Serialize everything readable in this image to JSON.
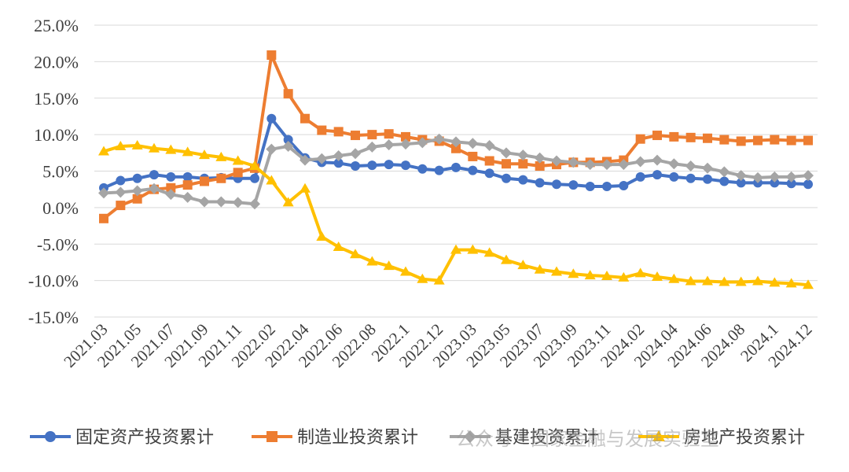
{
  "chart_data": {
    "type": "line",
    "title": "",
    "xlabel": "",
    "ylabel": "",
    "ylim": [
      -15,
      25
    ],
    "yticks": [
      "25.0%",
      "20.0%",
      "15.0%",
      "10.0%",
      "5.0%",
      "0.0%",
      "-5.0%",
      "-10.0%",
      "-15.0%"
    ],
    "ytick_values": [
      25,
      20,
      15,
      10,
      5,
      0,
      -5,
      -10,
      -15
    ],
    "x": [
      "2021.03",
      "2021.04",
      "2021.05",
      "2021.06",
      "2021.07",
      "2021.08",
      "2021.09",
      "2021.10",
      "2021.11",
      "2021.12",
      "2022.02",
      "2022.03",
      "2022.04",
      "2022.05",
      "2022.06",
      "2022.07",
      "2022.08",
      "2022.09",
      "2022.1",
      "2022.11",
      "2022.12",
      "2023.02",
      "2023.03",
      "2023.04",
      "2023.05",
      "2023.06",
      "2023.07",
      "2023.08",
      "2023.09",
      "2023.10",
      "2023.11",
      "2023.12",
      "2024.02",
      "2024.03",
      "2024.04",
      "2024.05",
      "2024.06",
      "2024.07",
      "2024.08",
      "2024.09",
      "2024.1",
      "2024.11",
      "2024.12"
    ],
    "xtick_labels": [
      "2021.03",
      "2021.05",
      "2021.07",
      "2021.09",
      "2021.11",
      "2022.02",
      "2022.04",
      "2022.06",
      "2022.08",
      "2022.1",
      "2022.12",
      "2023.03",
      "2023.05",
      "2023.07",
      "2023.09",
      "2023.11",
      "2024.02",
      "2024.04",
      "2024.06",
      "2024.08",
      "2024.1",
      "2024.12"
    ],
    "grid": true,
    "legend_position": "bottom",
    "series": [
      {
        "name": "固定资产投资累计",
        "color": "#4472C4",
        "marker": "circle",
        "values": [
          2.7,
          3.7,
          4.0,
          4.5,
          4.2,
          4.2,
          4.0,
          4.1,
          4.0,
          4.0,
          12.2,
          9.3,
          6.8,
          6.2,
          6.1,
          5.7,
          5.8,
          5.9,
          5.8,
          5.3,
          5.1,
          5.5,
          5.1,
          4.7,
          4.0,
          3.8,
          3.4,
          3.2,
          3.1,
          2.9,
          2.9,
          3.0,
          4.2,
          4.5,
          4.2,
          4.0,
          3.9,
          3.6,
          3.4,
          3.4,
          3.4,
          3.3,
          3.2
        ]
      },
      {
        "name": "制造业投资累计",
        "color": "#ED7D31",
        "marker": "square",
        "values": [
          -1.5,
          0.3,
          1.2,
          2.5,
          2.7,
          3.1,
          3.6,
          4.0,
          4.8,
          5.4,
          20.9,
          15.6,
          12.2,
          10.6,
          10.4,
          9.9,
          10.0,
          10.1,
          9.7,
          9.3,
          9.1,
          8.1,
          7.0,
          6.4,
          6.0,
          6.0,
          5.7,
          5.9,
          6.2,
          6.2,
          6.3,
          6.5,
          9.4,
          9.9,
          9.7,
          9.6,
          9.5,
          9.3,
          9.1,
          9.2,
          9.3,
          9.2,
          9.2
        ]
      },
      {
        "name": "基建投资累计",
        "color": "#A5A5A5",
        "marker": "diamond",
        "values": [
          2.0,
          2.1,
          2.3,
          2.6,
          1.8,
          1.4,
          0.8,
          0.8,
          0.7,
          0.5,
          8.0,
          8.4,
          6.5,
          6.7,
          7.1,
          7.4,
          8.3,
          8.6,
          8.7,
          8.9,
          9.4,
          9.0,
          8.8,
          8.5,
          7.5,
          7.2,
          6.8,
          6.4,
          6.2,
          5.9,
          5.9,
          5.9,
          6.3,
          6.5,
          6.0,
          5.7,
          5.4,
          4.9,
          4.4,
          4.1,
          4.2,
          4.2,
          4.4
        ]
      },
      {
        "name": "房地产投资累计",
        "color": "#FFC000",
        "marker": "triangle",
        "values": [
          7.7,
          8.4,
          8.5,
          8.1,
          7.9,
          7.6,
          7.2,
          6.9,
          6.4,
          5.7,
          3.7,
          0.7,
          2.6,
          -4.0,
          -5.4,
          -6.4,
          -7.4,
          -8.0,
          -8.8,
          -9.8,
          -10.0,
          -5.8,
          -5.8,
          -6.2,
          -7.2,
          -7.9,
          -8.5,
          -8.8,
          -9.1,
          -9.3,
          -9.4,
          -9.6,
          -9.0,
          -9.5,
          -9.8,
          -10.1,
          -10.1,
          -10.2,
          -10.2,
          -10.1,
          -10.3,
          -10.4,
          -10.6
        ]
      }
    ]
  },
  "watermark": "公众号 · 国家金融与发展实验室"
}
